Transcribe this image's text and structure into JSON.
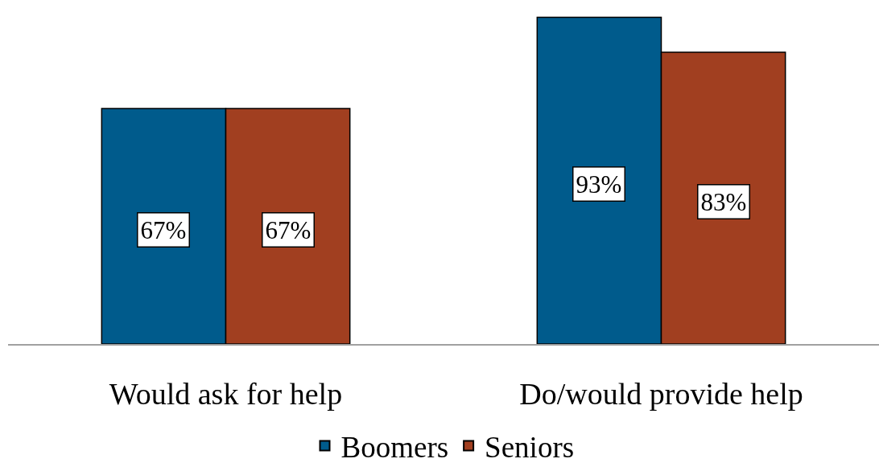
{
  "chart_data": {
    "type": "bar",
    "categories": [
      "Would ask for help",
      "Do/would provide help"
    ],
    "series": [
      {
        "name": "Boomers",
        "color": "#005b8c",
        "values": [
          67,
          93
        ],
        "value_labels": [
          "67%",
          "93%"
        ]
      },
      {
        "name": "Seniors",
        "color": "#a13f20",
        "values": [
          67,
          83
        ],
        "value_labels": [
          "67%",
          "83%"
        ]
      }
    ],
    "legend": "bottom",
    "tick_labels": "x"
  }
}
